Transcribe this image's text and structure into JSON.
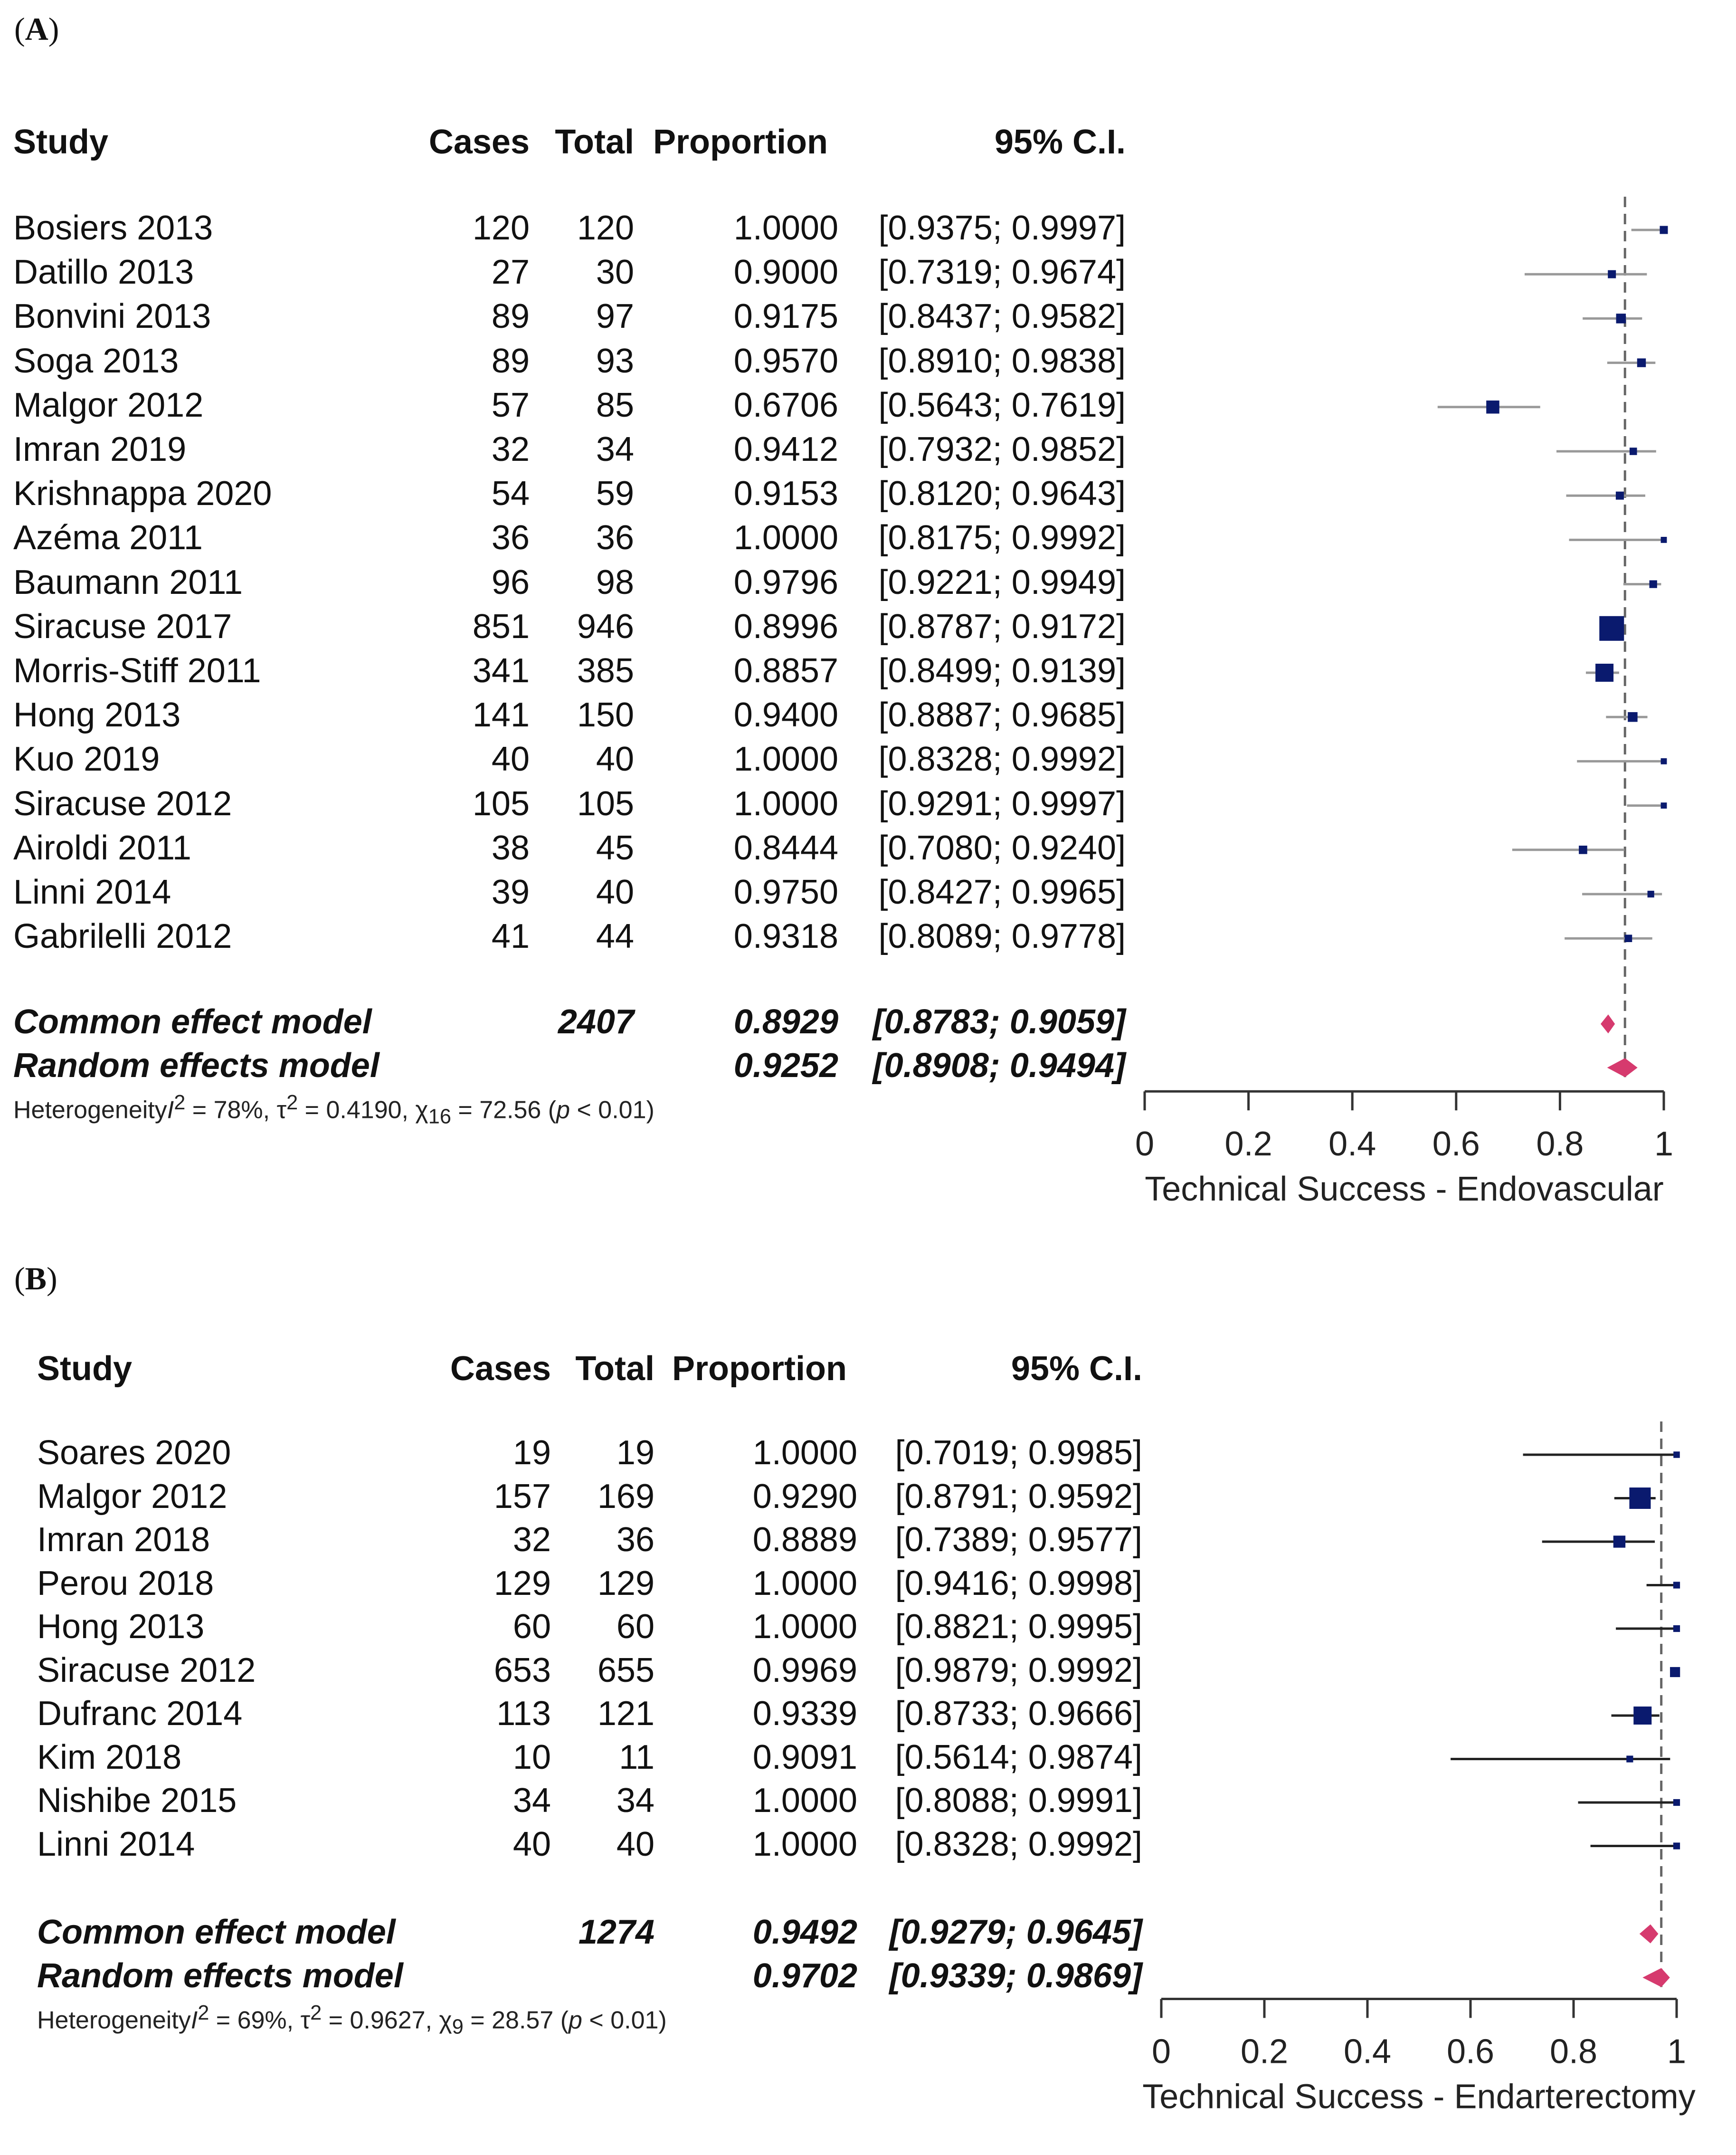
{
  "chart_data": [
    {
      "type": "forest",
      "panel_label": "A",
      "columns": [
        "Study",
        "Cases",
        "Total",
        "Proportion",
        "95% C.I."
      ],
      "studies": [
        {
          "name": "Bosiers 2013",
          "cases": "120",
          "total": "120",
          "proportion": "1.0000",
          "ci": "[0.9375; 0.9997]",
          "est": 1.0,
          "lo": 0.9375,
          "hi": 0.9997,
          "weight": 1
        },
        {
          "name": "Datillo 2013",
          "cases": "27",
          "total": "30",
          "proportion": "0.9000",
          "ci": "[0.7319; 0.9674]",
          "est": 0.9,
          "lo": 0.7319,
          "hi": 0.9674,
          "weight": 1
        },
        {
          "name": "Bonvini 2013",
          "cases": "89",
          "total": "97",
          "proportion": "0.9175",
          "ci": "[0.8437; 0.9582]",
          "est": 0.9175,
          "lo": 0.8437,
          "hi": 0.9582,
          "weight": 1.5
        },
        {
          "name": "Soga 2013",
          "cases": "89",
          "total": "93",
          "proportion": "0.9570",
          "ci": "[0.8910; 0.9838]",
          "est": 0.957,
          "lo": 0.891,
          "hi": 0.9838,
          "weight": 1.2
        },
        {
          "name": "Malgor 2012",
          "cases": "57",
          "total": "85",
          "proportion": "0.6706",
          "ci": "[0.5643; 0.7619]",
          "est": 0.6706,
          "lo": 0.5643,
          "hi": 0.7619,
          "weight": 2.5
        },
        {
          "name": "Imran 2019",
          "cases": "32",
          "total": "34",
          "proportion": "0.9412",
          "ci": "[0.7932; 0.9852]",
          "est": 0.9412,
          "lo": 0.7932,
          "hi": 0.9852,
          "weight": 0.8
        },
        {
          "name": "Krishnappa 2020",
          "cases": "54",
          "total": "59",
          "proportion": "0.9153",
          "ci": "[0.8120; 0.9643]",
          "est": 0.9153,
          "lo": 0.812,
          "hi": 0.9643,
          "weight": 1
        },
        {
          "name": "Azéma 2011",
          "cases": "36",
          "total": "36",
          "proportion": "1.0000",
          "ci": "[0.8175; 0.9992]",
          "est": 1.0,
          "lo": 0.8175,
          "hi": 0.9992,
          "weight": 0.4
        },
        {
          "name": "Baumann 2011",
          "cases": "96",
          "total": "98",
          "proportion": "0.9796",
          "ci": "[0.9221; 0.9949]",
          "est": 0.9796,
          "lo": 0.9221,
          "hi": 0.9949,
          "weight": 0.9
        },
        {
          "name": "Siracuse 2017",
          "cases": "851",
          "total": "946",
          "proportion": "0.8996",
          "ci": "[0.8787; 0.9172]",
          "est": 0.8996,
          "lo": 0.8787,
          "hi": 0.9172,
          "weight": 6
        },
        {
          "name": "Morris-Stiff 2011",
          "cases": "341",
          "total": "385",
          "proportion": "0.8857",
          "ci": "[0.8499; 0.9139]",
          "est": 0.8857,
          "lo": 0.8499,
          "hi": 0.9139,
          "weight": 4
        },
        {
          "name": "Hong 2013",
          "cases": "141",
          "total": "150",
          "proportion": "0.9400",
          "ci": "[0.8887; 0.9685]",
          "est": 0.94,
          "lo": 0.8887,
          "hi": 0.9685,
          "weight": 1.5
        },
        {
          "name": "Kuo 2019",
          "cases": "40",
          "total": "40",
          "proportion": "1.0000",
          "ci": "[0.8328; 0.9992]",
          "est": 1.0,
          "lo": 0.8328,
          "hi": 0.9992,
          "weight": 0.4
        },
        {
          "name": "Siracuse 2012",
          "cases": "105",
          "total": "105",
          "proportion": "1.0000",
          "ci": "[0.9291; 0.9997]",
          "est": 1.0,
          "lo": 0.9291,
          "hi": 0.9997,
          "weight": 0.4
        },
        {
          "name": "Airoldi 2011",
          "cases": "38",
          "total": "45",
          "proportion": "0.8444",
          "ci": "[0.7080; 0.9240]",
          "est": 0.8444,
          "lo": 0.708,
          "hi": 0.924,
          "weight": 1.1
        },
        {
          "name": "Linni 2014",
          "cases": "39",
          "total": "40",
          "proportion": "0.9750",
          "ci": "[0.8427; 0.9965]",
          "est": 0.975,
          "lo": 0.8427,
          "hi": 0.9965,
          "weight": 0.6
        },
        {
          "name": "Gabrilelli 2012",
          "cases": "41",
          "total": "44",
          "proportion": "0.9318",
          "ci": "[0.8089; 0.9778]",
          "est": 0.9318,
          "lo": 0.8089,
          "hi": 0.9778,
          "weight": 0.8
        }
      ],
      "common": {
        "label": "Common effect model",
        "total": "2407",
        "proportion": "0.8929",
        "ci": "[0.8783; 0.9059]",
        "est": 0.8929,
        "lo": 0.8783,
        "hi": 0.9059
      },
      "random": {
        "label": "Random effects model",
        "proportion": "0.9252",
        "ci": "[0.8908; 0.9494]",
        "est": 0.9252,
        "lo": 0.8908,
        "hi": 0.9494
      },
      "heterogeneity": {
        "prefix": "Heterogeneity",
        "i2": "78%",
        "tau2": "0.4190",
        "chi2_df": "16",
        "chi2": "72.56",
        "p": "< 0.01"
      },
      "xlim": [
        0,
        1
      ],
      "xticks": [
        "0",
        "0.2",
        "0.4",
        "0.6",
        "0.8",
        "1"
      ],
      "xlabel": "Technical Success - Endovascular",
      "colors": {
        "study": "#0a1a6e",
        "ci": "#999999",
        "pooled": "#d63a6e"
      }
    },
    {
      "type": "forest",
      "panel_label": "B",
      "columns": [
        "Study",
        "Cases",
        "Total",
        "Proportion",
        "95% C.I."
      ],
      "studies": [
        {
          "name": "Soares 2020",
          "cases": "19",
          "total": "19",
          "proportion": "1.0000",
          "ci": "[0.7019; 0.9985]",
          "est": 1.0,
          "lo": 0.7019,
          "hi": 0.9985,
          "weight": 0.5
        },
        {
          "name": "Malgor 2012",
          "cases": "157",
          "total": "169",
          "proportion": "0.9290",
          "ci": "[0.8791; 0.9592]",
          "est": 0.929,
          "lo": 0.8791,
          "hi": 0.9592,
          "weight": 5
        },
        {
          "name": "Imran 2018",
          "cases": "32",
          "total": "36",
          "proportion": "0.8889",
          "ci": "[0.7389; 0.9577]",
          "est": 0.8889,
          "lo": 0.7389,
          "hi": 0.9577,
          "weight": 2.2
        },
        {
          "name": "Perou 2018",
          "cases": "129",
          "total": "129",
          "proportion": "1.0000",
          "ci": "[0.9416; 0.9998]",
          "est": 1.0,
          "lo": 0.9416,
          "hi": 0.9998,
          "weight": 0.6
        },
        {
          "name": "Hong 2013",
          "cases": "60",
          "total": "60",
          "proportion": "1.0000",
          "ci": "[0.8821; 0.9995]",
          "est": 1.0,
          "lo": 0.8821,
          "hi": 0.9995,
          "weight": 0.6
        },
        {
          "name": "Siracuse 2012",
          "cases": "653",
          "total": "655",
          "proportion": "0.9969",
          "ci": "[0.9879; 0.9992]",
          "est": 0.9969,
          "lo": 0.9879,
          "hi": 0.9992,
          "weight": 1.6
        },
        {
          "name": "Dufranc 2014",
          "cases": "113",
          "total": "121",
          "proportion": "0.9339",
          "ci": "[0.8733; 0.9666]",
          "est": 0.9339,
          "lo": 0.8733,
          "hi": 0.9666,
          "weight": 4
        },
        {
          "name": "Kim 2018",
          "cases": "10",
          "total": "11",
          "proportion": "0.9091",
          "ci": "[0.5614; 0.9874]",
          "est": 0.9091,
          "lo": 0.5614,
          "hi": 0.9874,
          "weight": 0.6
        },
        {
          "name": "Nishibe 2015",
          "cases": "34",
          "total": "34",
          "proportion": "1.0000",
          "ci": "[0.8088; 0.9991]",
          "est": 1.0,
          "lo": 0.8088,
          "hi": 0.9991,
          "weight": 0.6
        },
        {
          "name": "Linni 2014",
          "cases": "40",
          "total": "40",
          "proportion": "1.0000",
          "ci": "[0.8328; 0.9992]",
          "est": 1.0,
          "lo": 0.8328,
          "hi": 0.9992,
          "weight": 0.6
        }
      ],
      "common": {
        "label": "Common effect model",
        "total": "1274",
        "proportion": "0.9492",
        "ci": "[0.9279; 0.9645]",
        "est": 0.9492,
        "lo": 0.9279,
        "hi": 0.9645
      },
      "random": {
        "label": "Random effects model",
        "proportion": "0.9702",
        "ci": "[0.9339; 0.9869]",
        "est": 0.9702,
        "lo": 0.9339,
        "hi": 0.9869
      },
      "heterogeneity": {
        "prefix": "Heterogeneity",
        "i2": "69%",
        "tau2": "0.9627",
        "chi2_df": "9",
        "chi2": "28.57",
        "p": "< 0.01"
      },
      "xlim": [
        0,
        1
      ],
      "xticks": [
        "0",
        "0.2",
        "0.4",
        "0.6",
        "0.8",
        "1"
      ],
      "xlabel": "Technical Success - Endarterectomy",
      "colors": {
        "study": "#0a1a6e",
        "ci": "#222222",
        "pooled": "#d63a6e"
      }
    }
  ]
}
